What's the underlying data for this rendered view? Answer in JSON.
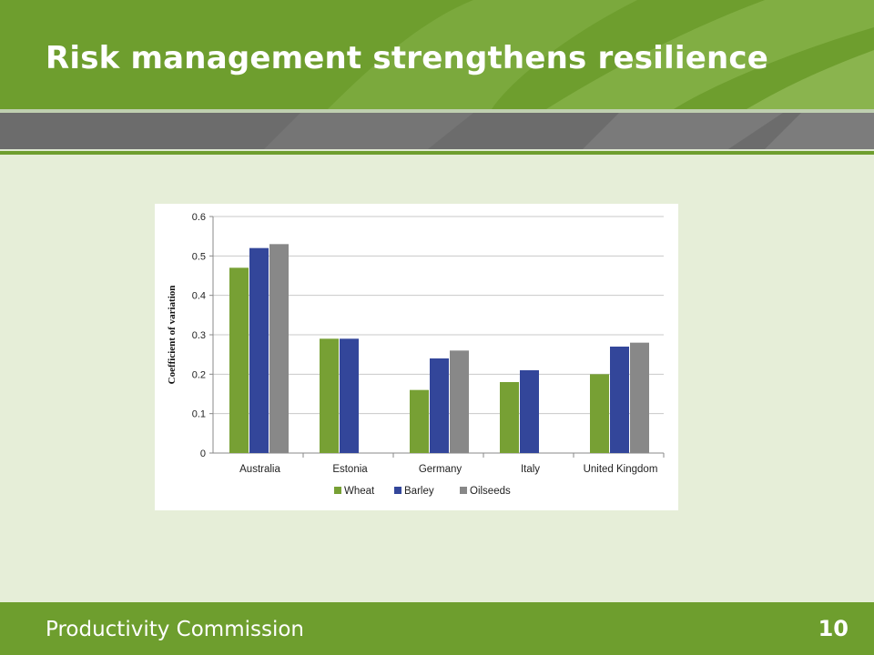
{
  "slide": {
    "title": "Risk management strengthens resilience",
    "footer_label": "Productivity Commission",
    "page_number": "10"
  },
  "colors": {
    "header_green": "#6e9e2e",
    "band_gray": "#6c6c6c",
    "background": "#e6eed8",
    "wheat": "#77a034",
    "barley": "#33469a",
    "oilseeds": "#888888"
  },
  "chart_data": {
    "type": "bar",
    "title": "",
    "xlabel": "",
    "ylabel": "Coefficient of variation",
    "ylim": [
      0,
      0.6
    ],
    "yticks": [
      "0",
      "0.1",
      "0.2",
      "0.3",
      "0.4",
      "0.5",
      "0.6"
    ],
    "grid": true,
    "legend_position": "bottom",
    "categories": [
      "Australia",
      "Estonia",
      "Germany",
      "Italy",
      "United Kingdom"
    ],
    "series": [
      {
        "name": "Wheat",
        "color": "#77a034",
        "values": [
          0.47,
          0.29,
          0.16,
          0.18,
          0.2
        ]
      },
      {
        "name": "Barley",
        "color": "#33469a",
        "values": [
          0.52,
          0.29,
          0.24,
          0.21,
          0.27
        ]
      },
      {
        "name": "Oilseeds",
        "color": "#888888",
        "values": [
          0.53,
          null,
          0.26,
          null,
          0.28
        ]
      }
    ]
  }
}
